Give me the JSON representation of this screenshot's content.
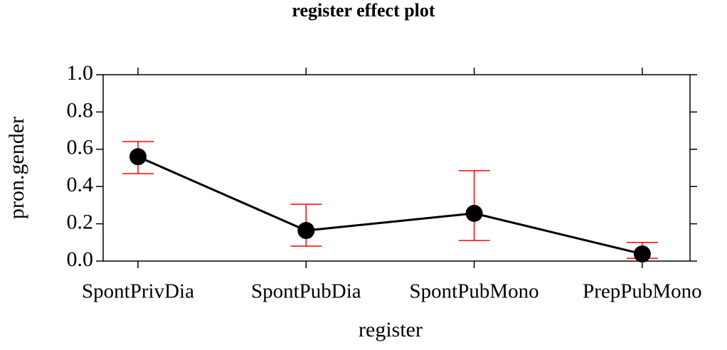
{
  "chart_data": {
    "type": "errorbar-line",
    "title": "register effect plot",
    "x_label": "register",
    "y_label": "pron.gender",
    "categories": [
      "SpontPrivDia",
      "SpontPubDia",
      "SpontPubMono",
      "PrepPubMono"
    ],
    "series": [
      {
        "color": "#000000",
        "error_color": "#ff0000",
        "values": [
          0.56,
          0.164,
          0.256,
          0.038
        ],
        "lower": [
          0.469,
          0.08,
          0.11,
          0.015
        ],
        "upper": [
          0.641,
          0.305,
          0.485,
          0.1
        ]
      }
    ],
    "ylim": [
      0,
      1
    ],
    "yticks": [
      {
        "value": 0,
        "label": "0.0"
      },
      {
        "value": 0.2,
        "label": "0.2"
      },
      {
        "value": 0.4,
        "label": "0.4"
      },
      {
        "value": 0.6,
        "label": "0.6"
      },
      {
        "value": 0.8,
        "label": "0.8"
      },
      {
        "value": 1,
        "label": "1.0"
      }
    ]
  }
}
